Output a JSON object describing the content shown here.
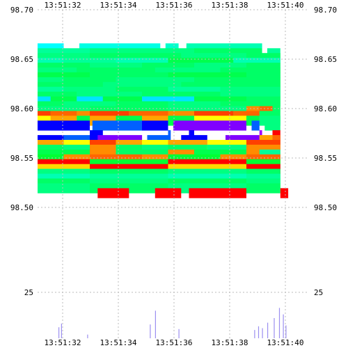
{
  "chart_data": {
    "type": "heatmap",
    "time_ticks": [
      "13:51:32",
      "13:51:34",
      "13:51:36",
      "13:51:38",
      "13:51:40"
    ],
    "price_ticks": [
      "98.70",
      "98.65",
      "98.60",
      "98.55",
      "98.50"
    ],
    "price_range": [
      98.45,
      98.7
    ],
    "volume_ticks": [
      "25"
    ],
    "grid": true,
    "bands": [
      {
        "price": 98.66,
        "segments": [
          [
            1,
            0,
            2
          ],
          [
            2.6,
            1,
            5.7
          ],
          [
            5.9,
            2,
            6.4
          ],
          [
            6.7,
            3,
            9.6
          ]
        ]
      },
      {
        "price": 98.655,
        "segments": [
          [
            1,
            4,
            3
          ],
          [
            3,
            5,
            7
          ],
          [
            7,
            6,
            9.6
          ],
          [
            9.8,
            4,
            10.3
          ]
        ]
      },
      {
        "price": 98.65,
        "segments": [
          [
            1,
            5,
            3
          ],
          [
            3,
            6,
            6.5
          ],
          [
            6.5,
            5,
            9
          ],
          [
            9,
            6,
            10.3
          ]
        ]
      },
      {
        "price": 98.645,
        "segments": [
          [
            1,
            3,
            2
          ],
          [
            2,
            4,
            4
          ],
          [
            4,
            3,
            6
          ],
          [
            6,
            7,
            8.5
          ],
          [
            8.5,
            3,
            10.3
          ]
        ]
      },
      {
        "price": 98.64,
        "segments": [
          [
            1,
            6,
            3
          ],
          [
            3,
            5,
            5
          ],
          [
            5,
            6,
            7
          ],
          [
            7,
            5,
            9
          ],
          [
            9,
            6,
            10.3
          ]
        ]
      },
      {
        "price": 98.635,
        "segments": [
          [
            1,
            5,
            2.5
          ],
          [
            2.5,
            6,
            5.5
          ],
          [
            5.5,
            5,
            8
          ],
          [
            8,
            6,
            10.3
          ]
        ]
      },
      {
        "price": 98.63,
        "segments": [
          [
            1,
            7,
            3
          ],
          [
            3,
            6,
            6
          ],
          [
            6,
            7,
            9
          ],
          [
            9,
            6,
            10.3
          ]
        ]
      },
      {
        "price": 98.625,
        "segments": [
          [
            1,
            5,
            2
          ],
          [
            2,
            6,
            4
          ],
          [
            4,
            5,
            7
          ],
          [
            7,
            6,
            10.3
          ]
        ]
      },
      {
        "price": 98.62,
        "segments": [
          [
            1,
            6,
            3.5
          ],
          [
            3.5,
            5,
            6.5
          ],
          [
            6.5,
            6,
            10.3
          ]
        ]
      },
      {
        "price": 98.615,
        "segments": [
          [
            1,
            4,
            2
          ],
          [
            2,
            5,
            4
          ],
          [
            4,
            6,
            6
          ],
          [
            6,
            4,
            8
          ],
          [
            8,
            5,
            10.3
          ]
        ]
      },
      {
        "price": 98.61,
        "segments": [
          [
            1,
            6,
            2.5
          ],
          [
            2.5,
            5,
            5
          ],
          [
            5,
            6,
            8
          ],
          [
            8,
            5,
            10.3
          ]
        ]
      },
      {
        "price": 98.605,
        "segments": [
          [
            1,
            8,
            1.5
          ],
          [
            1.5,
            7,
            2.5
          ],
          [
            2.5,
            8,
            3.5
          ],
          [
            3.5,
            7,
            5
          ],
          [
            5,
            8,
            7
          ],
          [
            7,
            7,
            9
          ],
          [
            9,
            6,
            10.3
          ]
        ]
      },
      {
        "price": 98.6,
        "segments": [
          [
            1,
            6,
            2
          ],
          [
            2,
            5,
            4
          ],
          [
            4,
            6,
            6
          ],
          [
            6,
            5,
            8
          ],
          [
            8,
            6,
            10.3
          ]
        ]
      },
      {
        "price": 98.595,
        "segments": [
          [
            1,
            5,
            3
          ],
          [
            3,
            6,
            6
          ],
          [
            6,
            5,
            9
          ],
          [
            9,
            11,
            9.5
          ],
          [
            9.5,
            12,
            10
          ]
        ]
      },
      {
        "price": 98.59,
        "segments": [
          [
            1,
            13,
            1.5
          ],
          [
            1.5,
            12,
            2.5
          ],
          [
            2.5,
            11,
            3
          ],
          [
            3,
            13,
            4.5
          ],
          [
            4.5,
            12,
            6
          ],
          [
            6,
            11,
            7
          ],
          [
            7,
            13,
            8.5
          ],
          [
            8.5,
            12,
            9.5
          ],
          [
            9.5,
            6,
            10.3
          ]
        ]
      },
      {
        "price": 98.585,
        "segments": [
          [
            1,
            9,
            1.5
          ],
          [
            1.5,
            10,
            2.5
          ],
          [
            2.5,
            7,
            3
          ],
          [
            3,
            10,
            4
          ],
          [
            4,
            7,
            5
          ],
          [
            5,
            10,
            6
          ],
          [
            6,
            7,
            7
          ],
          [
            7,
            9,
            9
          ],
          [
            9,
            7,
            9.5
          ],
          [
            9.5,
            5,
            10.3
          ]
        ]
      },
      {
        "price": 98.58,
        "segments": [
          [
            1,
            14,
            3
          ],
          [
            3.1,
            15,
            5
          ],
          [
            5,
            14,
            6
          ],
          [
            6.2,
            16,
            9
          ],
          [
            9.2,
            15,
            9.5
          ],
          [
            9.7,
            5,
            10.3
          ]
        ]
      },
      {
        "price": 98.57,
        "segments": [
          [
            3,
            14,
            3.5
          ],
          [
            6,
            15,
            6.1
          ],
          [
            6.8,
            14,
            7
          ],
          [
            9.5,
            17,
            9.6
          ],
          [
            10,
            18,
            10.3
          ]
        ]
      },
      {
        "price": 98.565,
        "segments": [
          [
            1,
            14,
            2
          ],
          [
            2,
            15,
            3
          ],
          [
            3.3,
            16,
            5
          ],
          [
            5.2,
            15,
            6
          ],
          [
            6.5,
            14,
            7.5
          ],
          [
            8.2,
            16,
            9.5
          ],
          [
            9.5,
            10,
            10
          ],
          [
            10,
            12,
            10.3
          ]
        ]
      },
      {
        "price": 98.56,
        "segments": [
          [
            1,
            10,
            2
          ],
          [
            2,
            9,
            3
          ],
          [
            3,
            13,
            4
          ],
          [
            4,
            10,
            5
          ],
          [
            5,
            9,
            6
          ],
          [
            6,
            10,
            7.5
          ],
          [
            7.5,
            9,
            9
          ],
          [
            9,
            13,
            10.3
          ]
        ]
      },
      {
        "price": 98.555,
        "segments": [
          [
            1,
            6,
            2
          ],
          [
            2,
            5,
            3
          ],
          [
            3,
            11,
            4
          ],
          [
            4,
            6,
            5
          ],
          [
            5,
            5,
            6
          ],
          [
            6,
            6,
            7.5
          ],
          [
            7.5,
            5,
            9
          ],
          [
            9,
            11,
            10.3
          ]
        ]
      },
      {
        "price": 98.55,
        "segments": [
          [
            1,
            7,
            3
          ],
          [
            3,
            11,
            4
          ],
          [
            4,
            6,
            6
          ],
          [
            6,
            11,
            7
          ],
          [
            7,
            7,
            9
          ],
          [
            9,
            11,
            9.5
          ],
          [
            9.5,
            4,
            10.3
          ]
        ]
      },
      {
        "price": 98.545,
        "segments": [
          [
            1,
            19,
            2
          ],
          [
            2,
            11,
            3
          ],
          [
            3,
            12,
            5
          ],
          [
            5,
            11,
            6
          ],
          [
            6,
            19,
            8
          ],
          [
            8,
            11,
            9
          ],
          [
            9,
            12,
            10.3
          ]
        ]
      },
      {
        "price": 98.54,
        "segments": [
          [
            1,
            18,
            3
          ],
          [
            3,
            19,
            6
          ],
          [
            6,
            18,
            9
          ],
          [
            9,
            19,
            10.3
          ]
        ]
      },
      {
        "price": 98.535,
        "segments": [
          [
            1,
            20,
            3
          ],
          [
            3,
            18,
            6
          ],
          [
            6,
            20,
            9
          ],
          [
            9,
            18,
            10.3
          ]
        ]
      },
      {
        "price": 98.53,
        "segments": [
          [
            1,
            5,
            3
          ],
          [
            3,
            6,
            6
          ],
          [
            6,
            5,
            9
          ],
          [
            9,
            6,
            10.3
          ]
        ]
      },
      {
        "price": 98.525,
        "segments": [
          [
            1,
            3,
            3
          ],
          [
            3,
            4,
            6
          ],
          [
            6,
            3,
            9
          ],
          [
            9,
            4,
            10.3
          ]
        ]
      },
      {
        "price": 98.52,
        "segments": [
          [
            1,
            6,
            3
          ],
          [
            3,
            5,
            6
          ],
          [
            6,
            6,
            9
          ],
          [
            9,
            5,
            10.3
          ]
        ]
      },
      {
        "price": 98.515,
        "segments": [
          [
            1,
            5,
            3
          ],
          [
            3,
            6,
            6
          ],
          [
            6,
            5,
            9
          ],
          [
            9,
            6,
            10.3
          ]
        ]
      },
      {
        "price": 98.51,
        "segments": [
          [
            3.3,
            18,
            4.5
          ],
          [
            5.5,
            18,
            6.5
          ],
          [
            6.8,
            18,
            9
          ],
          [
            10.3,
            18,
            10.6
          ]
        ]
      }
    ],
    "volume_bars": [
      [
        1.8,
        12
      ],
      [
        1.9,
        16
      ],
      [
        2.9,
        4
      ],
      [
        5.3,
        15
      ],
      [
        5.5,
        30
      ],
      [
        6.4,
        10
      ],
      [
        9.3,
        9
      ],
      [
        9.45,
        13
      ],
      [
        9.6,
        11
      ],
      [
        9.8,
        17
      ],
      [
        10.05,
        22
      ],
      [
        10.25,
        33
      ],
      [
        10.4,
        26
      ],
      [
        10.5,
        14
      ]
    ],
    "volume_max": 50,
    "palette": [
      "#00ffff",
      "#00ffe5",
      "#00ffcc",
      "#00ffb3",
      "#00ff99",
      "#00ff80",
      "#00ff66",
      "#00ff4d",
      "#00e5ff",
      "#ffff00",
      "#ffa500",
      "#ff8c00",
      "#ff6600",
      "#ff4000",
      "#0000ff",
      "#0060ff",
      "#8000ff",
      "#a000ff",
      "#ff0000",
      "#00ff33",
      "#ffd700"
    ]
  }
}
